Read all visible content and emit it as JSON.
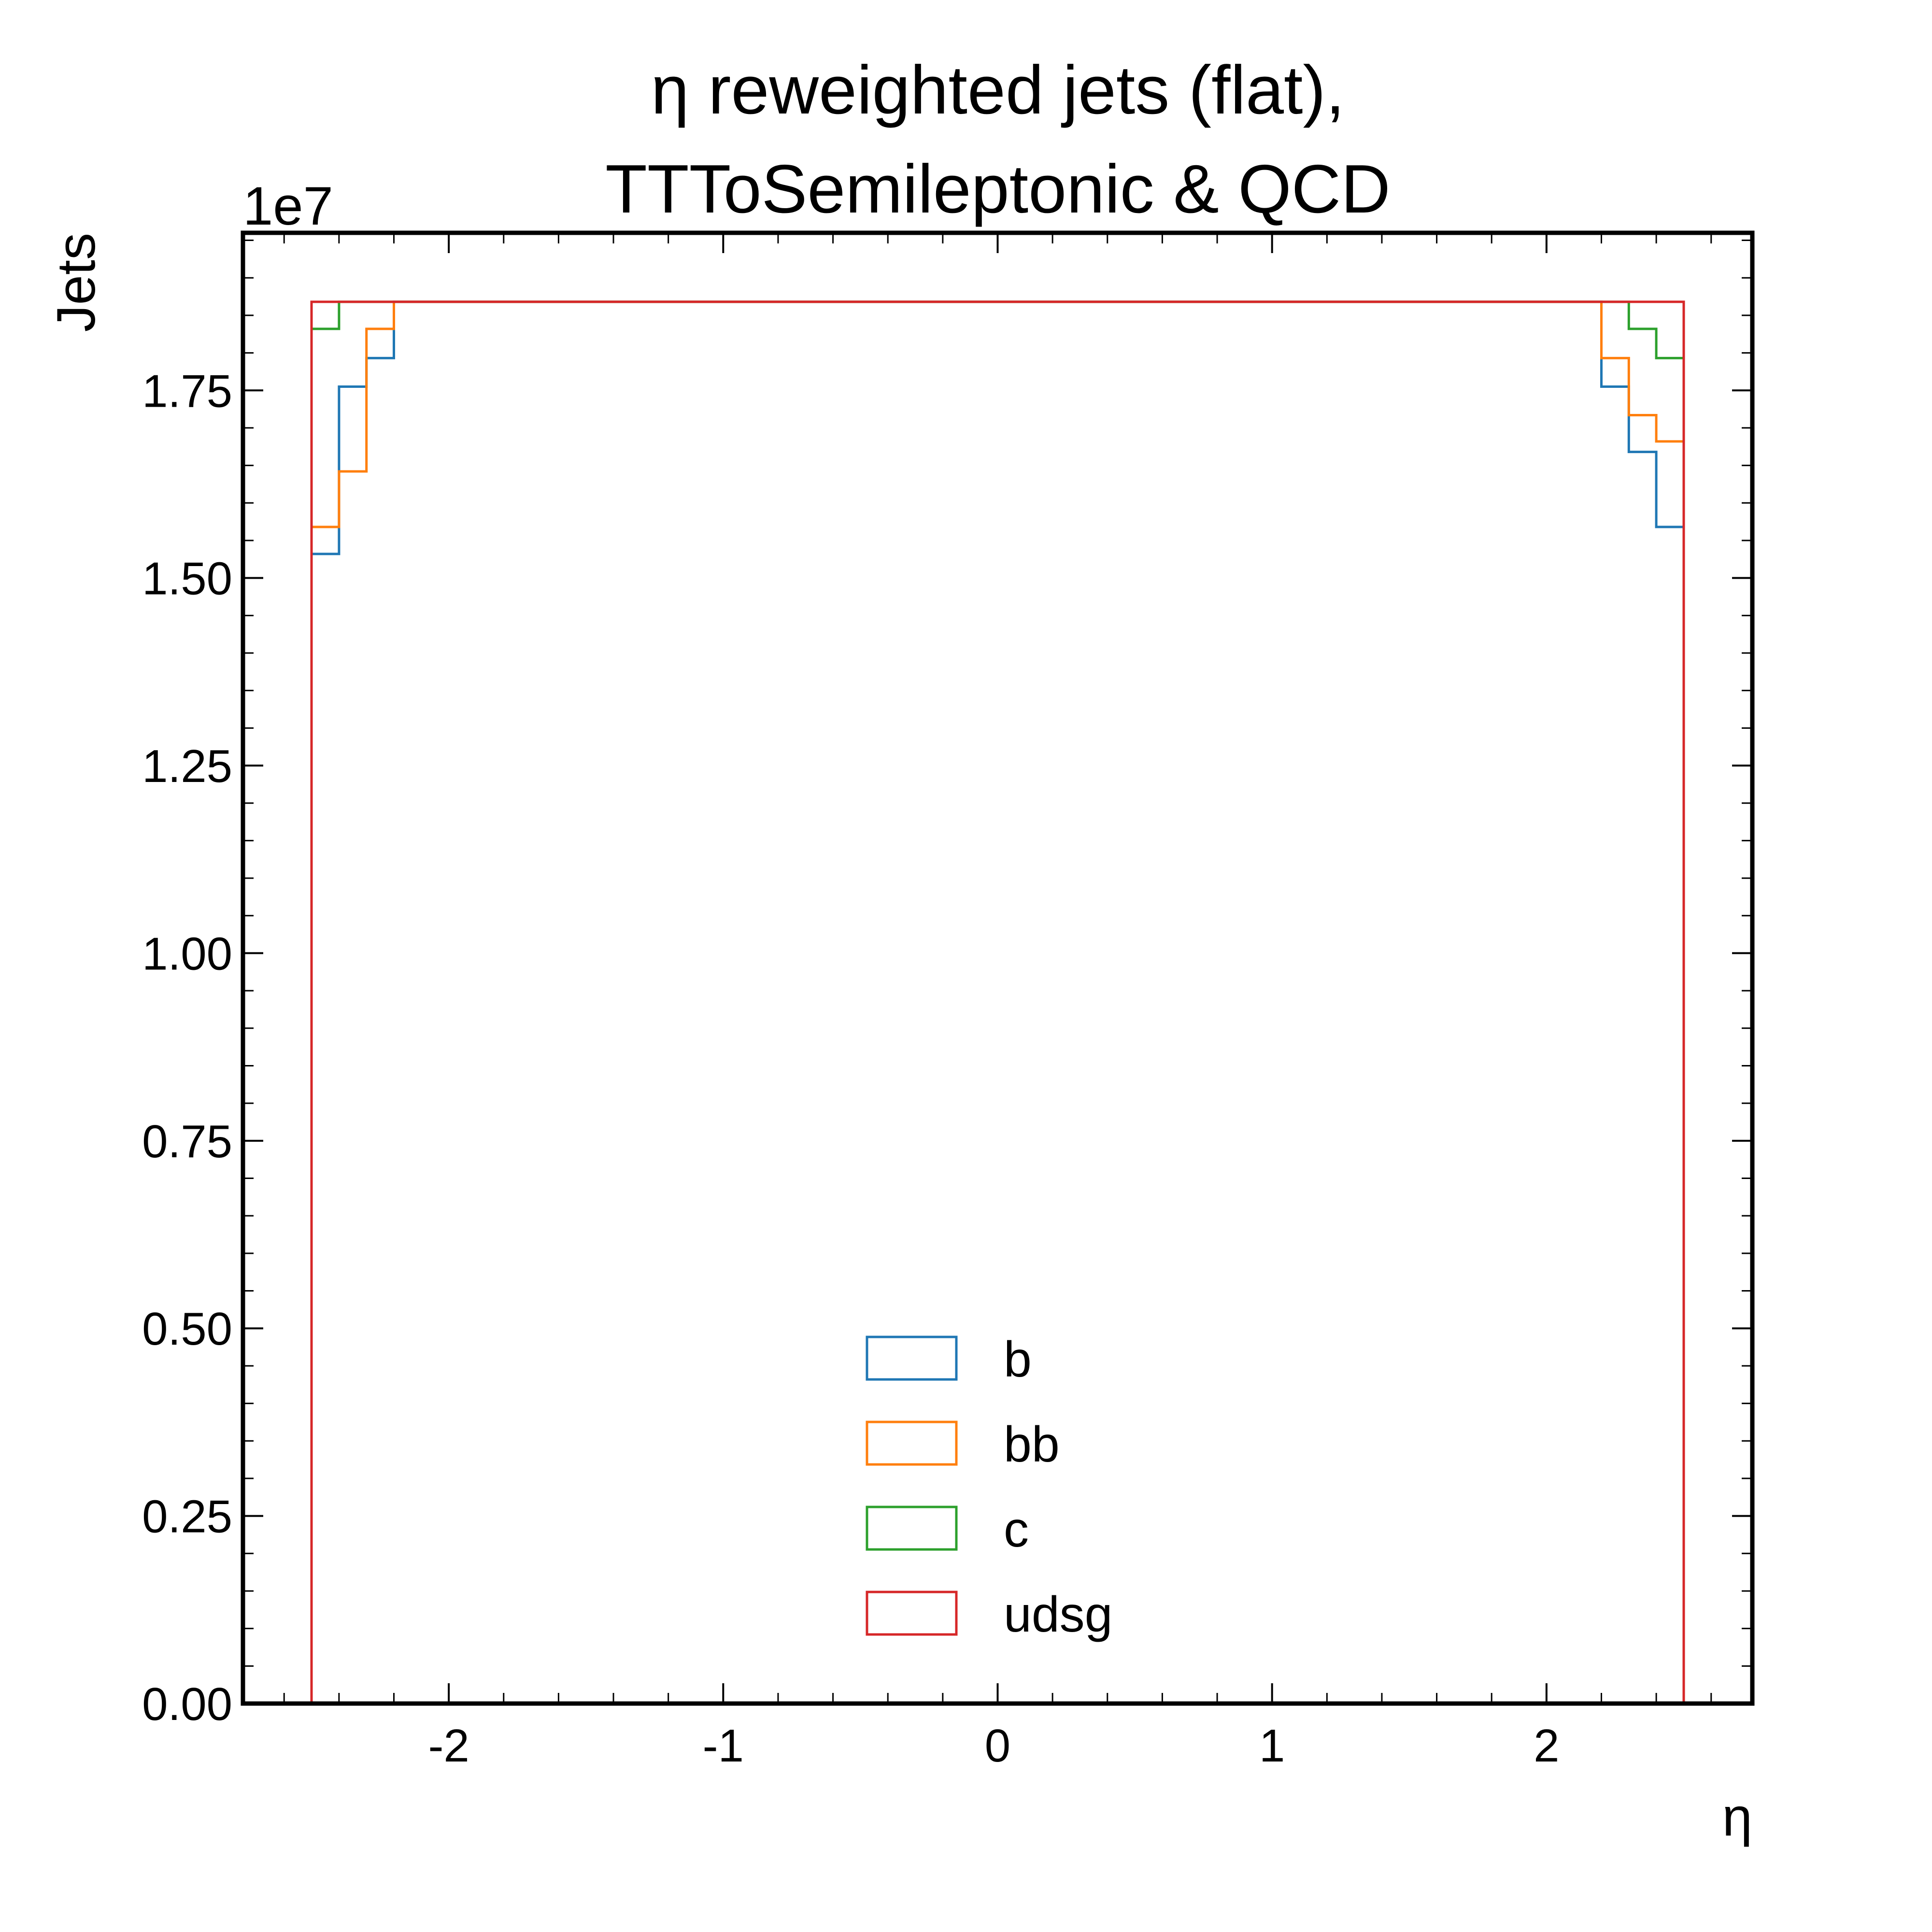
{
  "chart_data": {
    "type": "histogram-step",
    "title_line1": "η reweighted jets (flat),",
    "title_line2": "TTToSemileptonic & QCD",
    "xlabel": "η",
    "ylabel": "Jets",
    "y_multiplier": "1e7",
    "xlim": [
      -2.75,
      2.75
    ],
    "ylim": [
      0,
      1.96
    ],
    "xticks": [
      -2,
      -1,
      0,
      1,
      2
    ],
    "xtick_labels": [
      "-2",
      "-1",
      "0",
      "1",
      "2"
    ],
    "yticks": [
      0,
      0.25,
      0.5,
      0.75,
      1.0,
      1.25,
      1.5,
      1.75
    ],
    "ytick_labels": [
      "0.00",
      "0.25",
      "0.50",
      "0.75",
      "1.00",
      "1.25",
      "1.50",
      "1.75"
    ],
    "legend_position": "lower-center",
    "bin_edges": [
      -2.5,
      -2.4,
      -2.3,
      -2.2,
      -2.1,
      -2.0,
      -1.9,
      -1.8,
      -1.7,
      -1.6,
      -1.5,
      -1.4,
      -1.3,
      -1.2,
      -1.1,
      -1.0,
      -0.9,
      -0.8,
      -0.7,
      -0.6,
      -0.5,
      -0.4,
      -0.3,
      -0.2,
      -0.1,
      0.0,
      0.1,
      0.2,
      0.3,
      0.4,
      0.5,
      0.6,
      0.7,
      0.8,
      0.9,
      1.0,
      1.1,
      1.2,
      1.3,
      1.4,
      1.5,
      1.6,
      1.7,
      1.8,
      1.9,
      2.0,
      2.1,
      2.2,
      2.3,
      2.4,
      2.5
    ],
    "series": [
      {
        "name": "b",
        "color": "#1f77b4",
        "values": [
          1.532,
          1.755,
          1.793,
          1.868,
          1.868,
          1.868,
          1.868,
          1.868,
          1.868,
          1.868,
          1.868,
          1.868,
          1.868,
          1.868,
          1.868,
          1.868,
          1.868,
          1.868,
          1.868,
          1.868,
          1.868,
          1.868,
          1.868,
          1.868,
          1.868,
          1.868,
          1.868,
          1.868,
          1.868,
          1.868,
          1.868,
          1.868,
          1.868,
          1.868,
          1.868,
          1.868,
          1.868,
          1.868,
          1.868,
          1.868,
          1.868,
          1.868,
          1.868,
          1.868,
          1.868,
          1.868,
          1.868,
          1.755,
          1.668,
          1.568
        ]
      },
      {
        "name": "bb",
        "color": "#ff7f0e",
        "values": [
          1.568,
          1.642,
          1.832,
          1.868,
          1.868,
          1.868,
          1.868,
          1.868,
          1.868,
          1.868,
          1.868,
          1.868,
          1.868,
          1.868,
          1.868,
          1.868,
          1.868,
          1.868,
          1.868,
          1.868,
          1.868,
          1.868,
          1.868,
          1.868,
          1.868,
          1.868,
          1.868,
          1.868,
          1.868,
          1.868,
          1.868,
          1.868,
          1.868,
          1.868,
          1.868,
          1.868,
          1.868,
          1.868,
          1.868,
          1.868,
          1.868,
          1.868,
          1.868,
          1.868,
          1.868,
          1.868,
          1.868,
          1.793,
          1.717,
          1.682
        ]
      },
      {
        "name": "c",
        "color": "#2ca02c",
        "values": [
          1.832,
          1.868,
          1.868,
          1.868,
          1.868,
          1.868,
          1.868,
          1.868,
          1.868,
          1.868,
          1.868,
          1.868,
          1.868,
          1.868,
          1.868,
          1.868,
          1.868,
          1.868,
          1.868,
          1.868,
          1.868,
          1.868,
          1.868,
          1.868,
          1.868,
          1.868,
          1.868,
          1.868,
          1.868,
          1.868,
          1.868,
          1.868,
          1.868,
          1.868,
          1.868,
          1.868,
          1.868,
          1.868,
          1.868,
          1.868,
          1.868,
          1.868,
          1.868,
          1.868,
          1.868,
          1.868,
          1.868,
          1.868,
          1.832,
          1.793
        ]
      },
      {
        "name": "udsg",
        "color": "#d62728",
        "values": [
          1.868,
          1.868,
          1.868,
          1.868,
          1.868,
          1.868,
          1.868,
          1.868,
          1.868,
          1.868,
          1.868,
          1.868,
          1.868,
          1.868,
          1.868,
          1.868,
          1.868,
          1.868,
          1.868,
          1.868,
          1.868,
          1.868,
          1.868,
          1.868,
          1.868,
          1.868,
          1.868,
          1.868,
          1.868,
          1.868,
          1.868,
          1.868,
          1.868,
          1.868,
          1.868,
          1.868,
          1.868,
          1.868,
          1.868,
          1.868,
          1.868,
          1.868,
          1.868,
          1.868,
          1.868,
          1.868,
          1.868,
          1.868,
          1.868,
          1.868
        ]
      }
    ]
  }
}
